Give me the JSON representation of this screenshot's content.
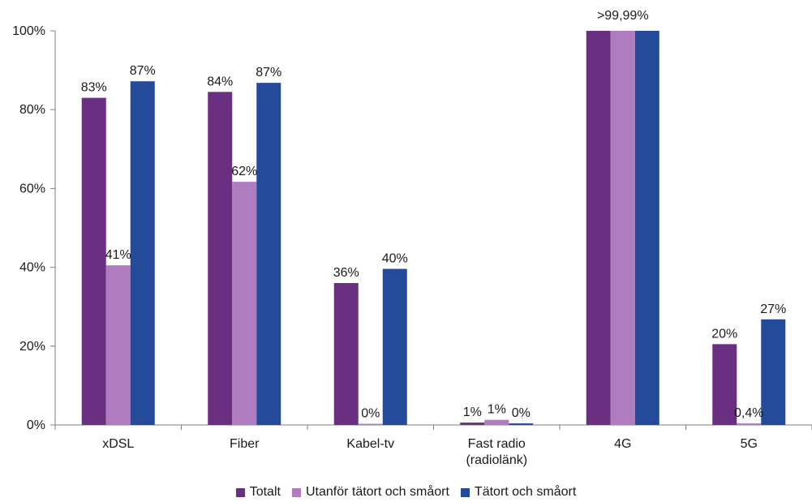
{
  "chart_data": {
    "type": "bar",
    "categories": [
      [
        "xDSL"
      ],
      [
        "Fiber"
      ],
      [
        "Kabel-tv"
      ],
      [
        "Fast radio",
        "(radiolänk)"
      ],
      [
        "4G"
      ],
      [
        "5G"
      ]
    ],
    "ylim": [
      0,
      100
    ],
    "yticks": [
      0,
      20,
      40,
      60,
      80,
      100
    ],
    "ytick_labels": [
      "0%",
      "20%",
      "40%",
      "60%",
      "80%",
      "100%"
    ],
    "grid": false,
    "legend_position": "bottom",
    "series": [
      {
        "name": "Totalt",
        "color": "#6b2f82",
        "values": [
          83,
          84.5,
          36,
          0.6,
          100,
          20.5
        ],
        "labels": [
          "83%",
          "84%",
          "36%",
          "1%",
          "",
          "20%"
        ]
      },
      {
        "name": "Utanför tätort och småort",
        "color": "#b07cc0",
        "values": [
          40.5,
          61.7,
          0.3,
          1.3,
          100,
          0.4
        ],
        "labels": [
          "41%",
          "62%",
          "0%",
          "1%",
          ">99,99%",
          "0,4%"
        ]
      },
      {
        "name": "Tätort och småort",
        "color": "#234b9a",
        "values": [
          87.2,
          86.8,
          39.6,
          0.4,
          100,
          26.8
        ],
        "labels": [
          "87%",
          "87%",
          "40%",
          "0%",
          "",
          "27%"
        ]
      }
    ]
  }
}
